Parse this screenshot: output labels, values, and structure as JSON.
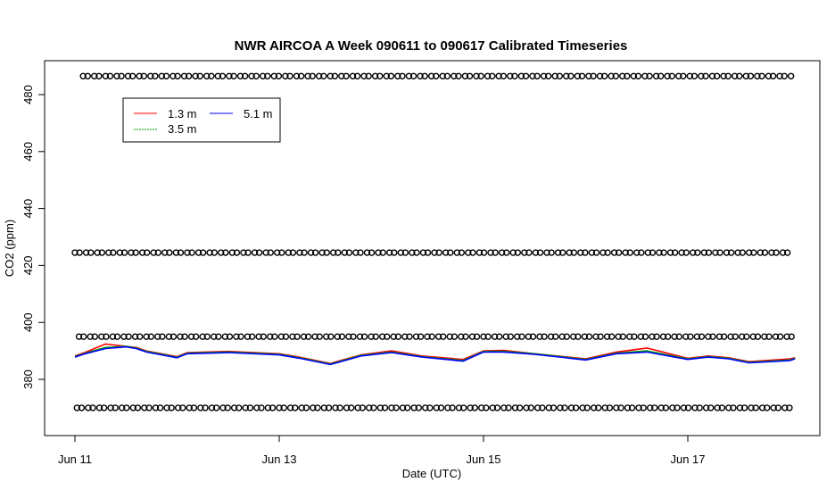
{
  "chart_data": {
    "type": "line",
    "title": "NWR AIRCOA A  Week 090611 to 090617  Calibrated Timeseries",
    "xlabel": "Date (UTC)",
    "ylabel": "CO2 (ppm)",
    "x_range_days": [
      -0.15,
      7.15
    ],
    "x_tick_days": [
      0,
      2,
      4,
      6
    ],
    "x_tick_labels": [
      "Jun 11",
      "Jun 13",
      "Jun 15",
      "Jun 17"
    ],
    "ylim": [
      361,
      475
    ],
    "y_ticks": [
      380,
      400,
      420,
      440,
      460,
      480
    ],
    "y_tick_labels": [
      "380",
      "400",
      "420",
      "440",
      "460",
      "480"
    ],
    "grid": false,
    "legend_position": "top-left",
    "legend": [
      {
        "label": "1.3 m",
        "color": "#ff0000"
      },
      {
        "label": "3.5 m",
        "color": "#00a000"
      },
      {
        "label": "5.1 m",
        "color": "#0000ff"
      }
    ],
    "reference_marker_levels": [
      486.5,
      424.5,
      395,
      370
    ],
    "reference_marker_symbol": "open-circle",
    "x_start_date": "2009-06-11",
    "series": [
      {
        "name": "1.3 m",
        "color": "#ff0000",
        "x": [
          0,
          0.1,
          0.3,
          0.5,
          0.6,
          0.7,
          1.0,
          1.1,
          1.5,
          2.0,
          2.2,
          2.5,
          2.8,
          3.1,
          3.4,
          3.8,
          4.0,
          4.2,
          4.5,
          5.0,
          5.3,
          5.6,
          6.0,
          6.2,
          6.4,
          6.6,
          7.0,
          7.05
        ],
        "y": [
          388.2,
          389.5,
          392.4,
          391.6,
          391.2,
          390.0,
          388.0,
          389.4,
          389.8,
          389.0,
          387.8,
          385.6,
          388.6,
          390.0,
          388.2,
          387.0,
          390.0,
          390.2,
          389.0,
          387.2,
          389.6,
          391.0,
          387.4,
          388.2,
          387.6,
          386.2,
          387.2,
          387.6
        ]
      },
      {
        "name": "3.5 m",
        "color": "#00a000",
        "x": [
          0,
          0.1,
          0.3,
          0.5,
          0.6,
          0.7,
          1.0,
          1.1,
          1.5,
          2.0,
          2.2,
          2.5,
          2.8,
          3.1,
          3.4,
          3.8,
          4.0,
          4.2,
          4.5,
          5.0,
          5.3,
          5.6,
          6.0,
          6.2,
          6.4,
          6.6,
          7.0,
          7.05
        ],
        "y": [
          388.0,
          389.2,
          391.2,
          391.6,
          391.0,
          389.8,
          387.8,
          389.2,
          389.6,
          388.8,
          387.6,
          385.4,
          388.4,
          389.6,
          388.0,
          386.6,
          389.8,
          389.8,
          389.0,
          387.0,
          389.2,
          390.0,
          387.2,
          388.0,
          387.4,
          386.0,
          386.8,
          387.4
        ]
      },
      {
        "name": "5.1 m",
        "color": "#0000ff",
        "x": [
          0,
          0.1,
          0.3,
          0.5,
          0.6,
          0.7,
          1.0,
          1.1,
          1.5,
          2.0,
          2.2,
          2.5,
          2.8,
          3.1,
          3.4,
          3.8,
          4.0,
          4.2,
          4.5,
          5.0,
          5.3,
          5.6,
          6.0,
          6.2,
          6.4,
          6.6,
          7.0,
          7.05
        ],
        "y": [
          387.8,
          389.0,
          390.8,
          391.4,
          390.8,
          389.6,
          387.6,
          389.0,
          389.4,
          388.6,
          387.4,
          385.2,
          388.2,
          389.4,
          387.8,
          386.4,
          389.6,
          389.6,
          388.8,
          386.8,
          389.0,
          389.6,
          387.0,
          387.8,
          387.2,
          385.8,
          386.6,
          387.2
        ]
      }
    ]
  }
}
